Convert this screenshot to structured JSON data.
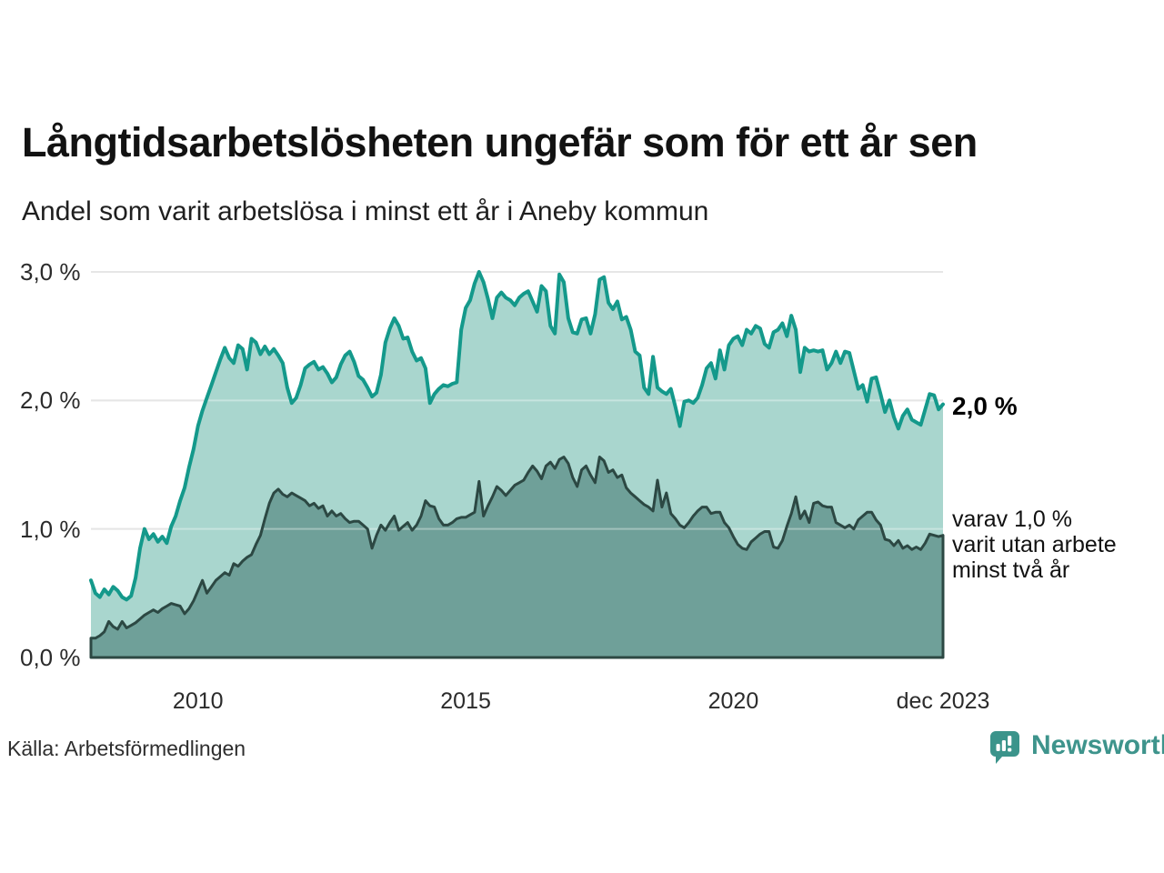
{
  "header": {
    "title": "Långtidsarbetslösheten ungefär som för ett år sen",
    "subtitle": "Andel som varit arbetslösa i minst ett år i Aneby kommun"
  },
  "chart_data": {
    "type": "area",
    "title": "Långtidsarbetslösheten ungefär som för ett år sen",
    "subtitle": "Andel som varit arbetslösa i minst ett år i Aneby kommun",
    "unit": "%",
    "x_range": [
      "jan 2008",
      "dec 2023"
    ],
    "ylim": [
      0,
      3
    ],
    "grid": "horizontal",
    "y_ticks": [
      {
        "label": "3,0 %",
        "value": 3
      },
      {
        "label": "2,0 %",
        "value": 2
      },
      {
        "label": "1,0 %",
        "value": 1
      },
      {
        "label": "0,0 %",
        "value": 0
      }
    ],
    "x_ticks": [
      {
        "label": "2010",
        "month_index": 24
      },
      {
        "label": "2015",
        "month_index": 84
      },
      {
        "label": "2020",
        "month_index": 144
      },
      {
        "label": "dec 2023",
        "month_index": 191
      }
    ],
    "colors": {
      "total_line": "#14998b",
      "total_fill": "#a9d6ce",
      "dark_line": "#2c4843",
      "dark_fill": "#6fa099",
      "gridline": "#d9d9d9",
      "gridline_overlay": "rgba(255,255,255,0.35)"
    },
    "series": [
      {
        "name": "Andel arbetslösa minst ett år",
        "values": [
          0.6,
          0.5,
          0.47,
          0.53,
          0.49,
          0.55,
          0.52,
          0.47,
          0.45,
          0.48,
          0.62,
          0.85,
          1.0,
          0.92,
          0.96,
          0.9,
          0.94,
          0.89,
          1.02,
          1.1,
          1.22,
          1.32,
          1.48,
          1.62,
          1.8,
          1.92,
          2.02,
          2.12,
          2.22,
          2.32,
          2.41,
          2.33,
          2.29,
          2.43,
          2.4,
          2.24,
          2.48,
          2.45,
          2.36,
          2.42,
          2.36,
          2.4,
          2.35,
          2.29,
          2.1,
          1.98,
          2.02,
          2.12,
          2.25,
          2.28,
          2.3,
          2.24,
          2.26,
          2.21,
          2.14,
          2.18,
          2.28,
          2.35,
          2.38,
          2.3,
          2.19,
          2.16,
          2.1,
          2.03,
          2.06,
          2.2,
          2.45,
          2.56,
          2.64,
          2.58,
          2.48,
          2.49,
          2.38,
          2.31,
          2.33,
          2.25,
          1.98,
          2.05,
          2.09,
          2.12,
          2.11,
          2.13,
          2.14,
          2.55,
          2.72,
          2.78,
          2.91,
          3.0,
          2.92,
          2.79,
          2.64,
          2.8,
          2.84,
          2.8,
          2.78,
          2.74,
          2.8,
          2.83,
          2.85,
          2.77,
          2.69,
          2.89,
          2.85,
          2.58,
          2.52,
          2.98,
          2.92,
          2.64,
          2.53,
          2.52,
          2.63,
          2.64,
          2.52,
          2.67,
          2.94,
          2.96,
          2.76,
          2.71,
          2.77,
          2.63,
          2.65,
          2.55,
          2.38,
          2.35,
          2.1,
          2.05,
          2.34,
          2.1,
          2.07,
          2.05,
          2.09,
          1.95,
          1.8,
          1.99,
          2.0,
          1.98,
          2.02,
          2.12,
          2.25,
          2.29,
          2.17,
          2.39,
          2.24,
          2.43,
          2.48,
          2.5,
          2.43,
          2.55,
          2.52,
          2.58,
          2.56,
          2.44,
          2.41,
          2.53,
          2.55,
          2.6,
          2.5,
          2.66,
          2.55,
          2.22,
          2.41,
          2.38,
          2.39,
          2.38,
          2.39,
          2.24,
          2.29,
          2.38,
          2.29,
          2.38,
          2.37,
          2.23,
          2.09,
          2.12,
          1.99,
          2.17,
          2.18,
          2.05,
          1.91,
          2.0,
          1.87,
          1.78,
          1.88,
          1.93,
          1.85,
          1.83,
          1.81,
          1.93,
          2.05,
          2.04,
          1.93,
          1.97
        ],
        "last_value_label": "2,0 %"
      },
      {
        "name": "varav utan arbete minst två år",
        "values": [
          0.15,
          0.15,
          0.17,
          0.2,
          0.28,
          0.24,
          0.22,
          0.28,
          0.23,
          0.25,
          0.27,
          0.3,
          0.33,
          0.35,
          0.37,
          0.35,
          0.38,
          0.4,
          0.42,
          0.41,
          0.4,
          0.34,
          0.38,
          0.44,
          0.52,
          0.6,
          0.5,
          0.55,
          0.6,
          0.63,
          0.66,
          0.64,
          0.73,
          0.71,
          0.75,
          0.78,
          0.8,
          0.88,
          0.95,
          1.08,
          1.2,
          1.28,
          1.31,
          1.27,
          1.25,
          1.28,
          1.26,
          1.24,
          1.22,
          1.18,
          1.2,
          1.16,
          1.18,
          1.1,
          1.14,
          1.1,
          1.12,
          1.08,
          1.05,
          1.06,
          1.06,
          1.03,
          1.0,
          0.85,
          0.95,
          1.03,
          0.99,
          1.05,
          1.1,
          0.99,
          1.02,
          1.05,
          0.99,
          1.03,
          1.1,
          1.22,
          1.18,
          1.17,
          1.08,
          1.03,
          1.03,
          1.05,
          1.08,
          1.09,
          1.09,
          1.11,
          1.13,
          1.37,
          1.1,
          1.18,
          1.25,
          1.33,
          1.3,
          1.26,
          1.3,
          1.34,
          1.36,
          1.38,
          1.44,
          1.49,
          1.45,
          1.39,
          1.49,
          1.52,
          1.47,
          1.54,
          1.56,
          1.51,
          1.4,
          1.33,
          1.46,
          1.49,
          1.42,
          1.36,
          1.56,
          1.53,
          1.44,
          1.46,
          1.4,
          1.42,
          1.32,
          1.28,
          1.25,
          1.22,
          1.19,
          1.17,
          1.14,
          1.38,
          1.17,
          1.28,
          1.12,
          1.08,
          1.03,
          1.01,
          1.05,
          1.1,
          1.14,
          1.17,
          1.17,
          1.12,
          1.13,
          1.13,
          1.05,
          1.01,
          0.94,
          0.88,
          0.85,
          0.84,
          0.9,
          0.93,
          0.96,
          0.98,
          0.98,
          0.86,
          0.85,
          0.91,
          1.02,
          1.12,
          1.25,
          1.08,
          1.14,
          1.05,
          1.2,
          1.21,
          1.18,
          1.17,
          1.17,
          1.05,
          1.03,
          1.01,
          1.03,
          1.0,
          1.07,
          1.1,
          1.13,
          1.13,
          1.07,
          1.03,
          0.92,
          0.91,
          0.87,
          0.91,
          0.85,
          0.87,
          0.84,
          0.86,
          0.84,
          0.89,
          0.96,
          0.95,
          0.94,
          0.95
        ]
      }
    ],
    "annotations": {
      "total_end": "2,0 %",
      "dark_end_lines": [
        "varav 1,0 %",
        "varit utan arbete",
        "minst två år"
      ]
    }
  },
  "footer": {
    "source": "Källa: Arbetsförmedlingen",
    "brand_name": "Newsworthy",
    "brand_color": "#3e948c"
  }
}
